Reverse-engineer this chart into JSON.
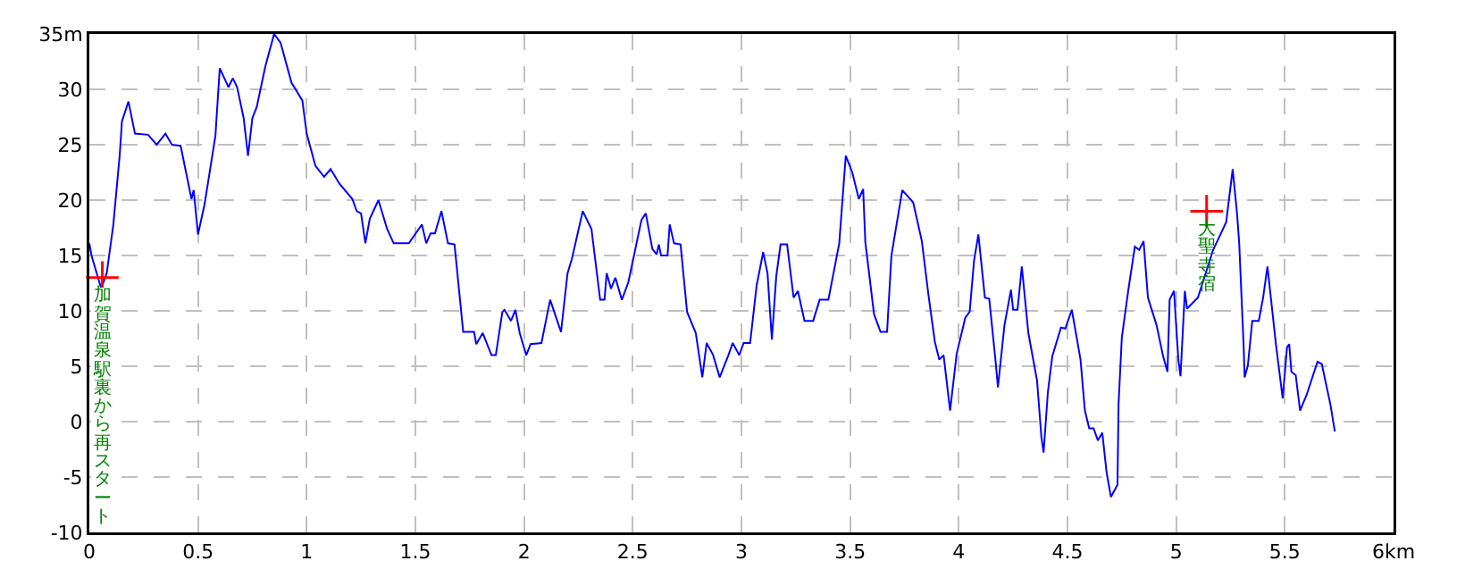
{
  "chart_data": {
    "type": "line",
    "xlim": [
      0,
      6
    ],
    "ylim": [
      -10,
      35
    ],
    "xticks": [
      0,
      0.5,
      1,
      1.5,
      2,
      2.5,
      3,
      3.5,
      4,
      4.5,
      5,
      5.5,
      {
        "value": 6,
        "label": "6km"
      }
    ],
    "yticks": [
      -10,
      -5,
      0,
      5,
      10,
      15,
      20,
      25,
      30,
      {
        "value": 35,
        "label": "35m"
      }
    ],
    "grid": true,
    "series": [
      {
        "color": "#0000ff",
        "marker": "none",
        "line_style": "solid",
        "x": [
          0,
          0.01,
          0.055,
          0.08,
          0.11,
          0.14,
          0.15,
          0.18,
          0.21,
          0.27,
          0.31,
          0.35,
          0.38,
          0.42,
          0.47,
          0.48,
          0.5,
          0.53,
          0.58,
          0.6,
          0.64,
          0.66,
          0.68,
          0.71,
          0.73,
          0.75,
          0.77,
          0.81,
          0.85,
          0.88,
          0.93,
          0.98,
          1.0,
          1.04,
          1.08,
          1.11,
          1.15,
          1.21,
          1.23,
          1.25,
          1.27,
          1.29,
          1.33,
          1.37,
          1.4,
          1.47,
          1.53,
          1.55,
          1.57,
          1.59,
          1.62,
          1.65,
          1.68,
          1.72,
          1.77,
          1.78,
          1.81,
          1.85,
          1.87,
          1.9,
          1.91,
          1.94,
          1.96,
          1.98,
          2.01,
          2.03,
          2.08,
          2.12,
          2.17,
          2.2,
          2.22,
          2.27,
          2.31,
          2.35,
          2.37,
          2.38,
          2.4,
          2.42,
          2.45,
          2.48,
          2.54,
          2.56,
          2.59,
          2.61,
          2.62,
          2.63,
          2.66,
          2.67,
          2.69,
          2.72,
          2.75,
          2.79,
          2.82,
          2.84,
          2.87,
          2.9,
          2.94,
          2.96,
          2.99,
          3.01,
          3.04,
          3.07,
          3.1,
          3.12,
          3.14,
          3.16,
          3.18,
          3.21,
          3.24,
          3.26,
          3.29,
          3.33,
          3.36,
          3.4,
          3.45,
          3.48,
          3.51,
          3.54,
          3.56,
          3.57,
          3.61,
          3.64,
          3.67,
          3.69,
          3.74,
          3.79,
          3.83,
          3.86,
          3.89,
          3.91,
          3.93,
          3.96,
          3.99,
          4.03,
          4.05,
          4.07,
          4.09,
          4.12,
          4.14,
          4.17,
          4.18,
          4.21,
          4.24,
          4.25,
          4.27,
          4.29,
          4.32,
          4.36,
          4.38,
          4.39,
          4.41,
          4.43,
          4.47,
          4.49,
          4.52,
          4.56,
          4.58,
          4.6,
          4.62,
          4.64,
          4.66,
          4.68,
          4.7,
          4.73,
          4.735,
          4.75,
          4.78,
          4.81,
          4.83,
          4.85,
          4.87,
          4.91,
          4.94,
          4.96,
          4.97,
          4.99,
          5.01,
          5.02,
          5.04,
          5.05,
          5.1,
          5.17,
          5.23,
          5.26,
          5.28,
          5.29,
          5.31,
          5.315,
          5.33,
          5.35,
          5.38,
          5.4,
          5.42,
          5.46,
          5.49,
          5.51,
          5.52,
          5.53,
          5.55,
          5.57,
          5.6,
          5.65,
          5.67,
          5.71,
          5.73
        ],
        "values": [
          16.1,
          15,
          12,
          13.4,
          17.7,
          24.1,
          27.1,
          28.9,
          26,
          25.9,
          25,
          26,
          25,
          24.9,
          20.1,
          20.9,
          16.9,
          19.6,
          25.8,
          31.9,
          30.2,
          31,
          30.2,
          27.4,
          24,
          27.4,
          28.4,
          32.1,
          35,
          34.2,
          30.6,
          29,
          26,
          23.1,
          22.1,
          22.8,
          21.5,
          20.1,
          19,
          18.8,
          16.1,
          18.3,
          20,
          17.4,
          16.1,
          16.1,
          17.8,
          16.1,
          17,
          17,
          19,
          16.1,
          16,
          8.1,
          8.1,
          7,
          8,
          6,
          6,
          9.9,
          10.1,
          9.1,
          10.1,
          8,
          6,
          7,
          7.1,
          11,
          8.1,
          13.4,
          14.7,
          19,
          17.4,
          11,
          11,
          13.4,
          12,
          13,
          11,
          12.6,
          18.2,
          18.8,
          15.6,
          15.1,
          16,
          15,
          15,
          17.8,
          16.1,
          16,
          9.9,
          8,
          4,
          7.1,
          6,
          4,
          6,
          7.1,
          6,
          7.1,
          7.1,
          12.3,
          15.3,
          13.4,
          7.4,
          13.1,
          16,
          16,
          11.2,
          11.8,
          9.1,
          9.1,
          11,
          11,
          16.1,
          24,
          22.5,
          20.1,
          21,
          16.2,
          9.7,
          8.1,
          8.1,
          15,
          20.9,
          19.8,
          16.3,
          11.5,
          7.2,
          5.6,
          6,
          1,
          6.1,
          9.4,
          9.9,
          14.5,
          16.9,
          11.2,
          11.1,
          5.3,
          3.1,
          8.7,
          11.9,
          10.1,
          10.1,
          14,
          8,
          3.7,
          -1.4,
          -2.8,
          2.7,
          5.9,
          8.5,
          8.4,
          10.1,
          5.6,
          1,
          -0.6,
          -0.6,
          -1.7,
          -1,
          -4.6,
          -6.8,
          -5.7,
          1.6,
          7.6,
          11.9,
          15.8,
          15.5,
          16.3,
          11.2,
          8.7,
          5.9,
          4.5,
          11,
          11.8,
          5.6,
          4.1,
          11.8,
          10.2,
          11.2,
          15.5,
          18,
          22.8,
          18.8,
          16.1,
          7,
          4,
          5.1,
          9.1,
          9.1,
          11.2,
          14,
          6.8,
          2.1,
          6.7,
          7,
          4.5,
          4.2,
          1,
          2.4,
          5.4,
          5.2,
          1.5,
          -0.9
        ]
      },
      {
        "type": "scatter",
        "color": "#ff0000",
        "marker": "cross",
        "x": [
          0.06,
          5.14
        ],
        "values": [
          13,
          19
        ]
      }
    ],
    "annotations": [
      "加賀温泉駅裏から再スタート",
      {
        "text": "大聖寺宿",
        "x": 5.14,
        "y": 19
      }
    ]
  }
}
